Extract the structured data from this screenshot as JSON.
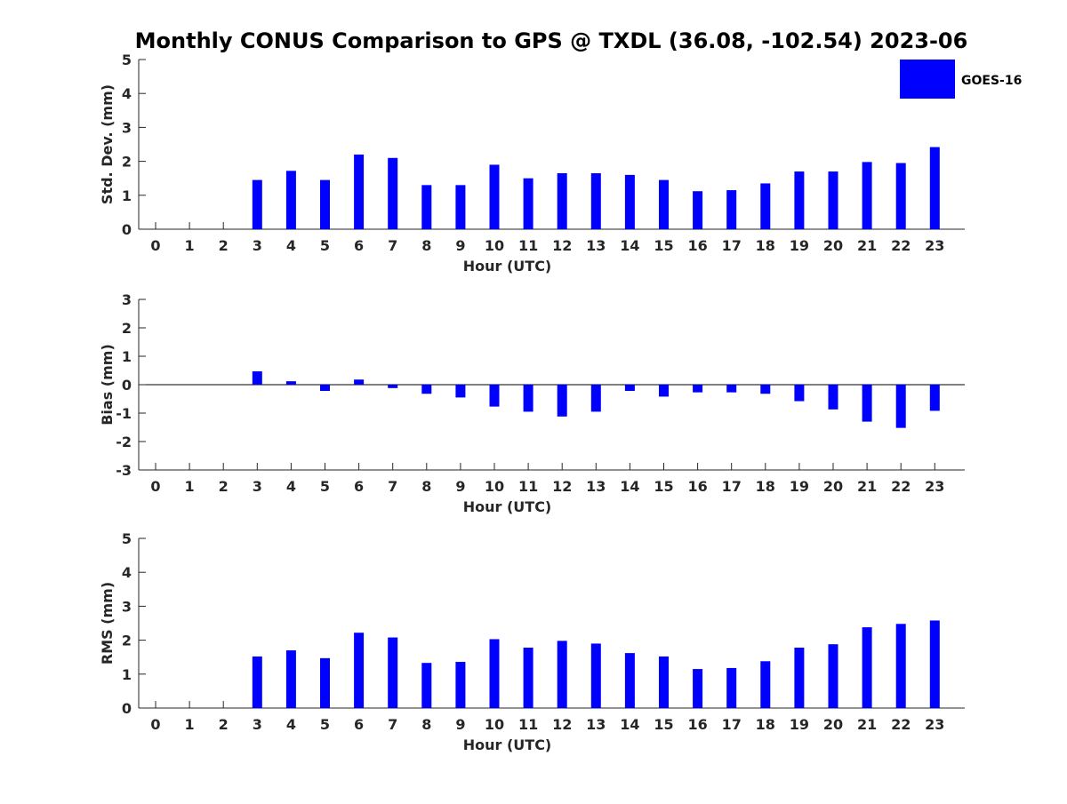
{
  "colors": {
    "bar": "#0000ff",
    "axis": "#262626",
    "background": "#ffffff"
  },
  "chart_data": {
    "title": "Monthly CONUS Comparison to GPS @ TXDL (36.08, -102.54) 2023-06",
    "legend": {
      "label": "GOES-16",
      "position": "top-right"
    },
    "panels": [
      {
        "id": "std",
        "type": "bar",
        "ylabel": "Std. Dev. (mm)",
        "xlabel": "Hour (UTC)",
        "ylim": [
          0,
          5
        ],
        "yticks": [
          0,
          1,
          2,
          3,
          4,
          5
        ],
        "categories": [
          0,
          1,
          2,
          3,
          4,
          5,
          6,
          7,
          8,
          9,
          10,
          11,
          12,
          13,
          14,
          15,
          16,
          17,
          18,
          19,
          20,
          21,
          22,
          23
        ],
        "series": [
          {
            "name": "GOES-16",
            "values": [
              0,
              0,
              0,
              1.45,
              1.72,
              1.45,
              2.2,
              2.1,
              1.3,
              1.3,
              1.9,
              1.5,
              1.65,
              1.65,
              1.6,
              1.45,
              1.12,
              1.15,
              1.35,
              1.7,
              1.7,
              1.98,
              1.95,
              2.42
            ]
          }
        ]
      },
      {
        "id": "bias",
        "type": "bar",
        "ylabel": "Bias (mm)",
        "xlabel": "Hour (UTC)",
        "ylim": [
          -3,
          3
        ],
        "yticks": [
          -3,
          -2,
          -1,
          0,
          1,
          2,
          3
        ],
        "categories": [
          0,
          1,
          2,
          3,
          4,
          5,
          6,
          7,
          8,
          9,
          10,
          11,
          12,
          13,
          14,
          15,
          16,
          17,
          18,
          19,
          20,
          21,
          22,
          23
        ],
        "series": [
          {
            "name": "GOES-16",
            "values": [
              0,
              0,
              0,
              0.47,
              0.12,
              -0.22,
              0.18,
              -0.12,
              -0.32,
              -0.45,
              -0.77,
              -0.95,
              -1.12,
              -0.95,
              -0.22,
              -0.42,
              -0.27,
              -0.27,
              -0.32,
              -0.58,
              -0.87,
              -1.3,
              -1.52,
              -0.92
            ]
          }
        ]
      },
      {
        "id": "rms",
        "type": "bar",
        "ylabel": "RMS (mm)",
        "xlabel": "Hour (UTC)",
        "ylim": [
          0,
          5
        ],
        "yticks": [
          0,
          1,
          2,
          3,
          4,
          5
        ],
        "categories": [
          0,
          1,
          2,
          3,
          4,
          5,
          6,
          7,
          8,
          9,
          10,
          11,
          12,
          13,
          14,
          15,
          16,
          17,
          18,
          19,
          20,
          21,
          22,
          23
        ],
        "series": [
          {
            "name": "GOES-16",
            "values": [
              0,
              0,
              0,
              1.52,
              1.7,
              1.47,
              2.22,
              2.08,
              1.33,
              1.36,
              2.03,
              1.78,
              1.98,
              1.9,
              1.62,
              1.52,
              1.15,
              1.18,
              1.38,
              1.78,
              1.88,
              2.38,
              2.48,
              2.58
            ]
          }
        ]
      }
    ]
  }
}
